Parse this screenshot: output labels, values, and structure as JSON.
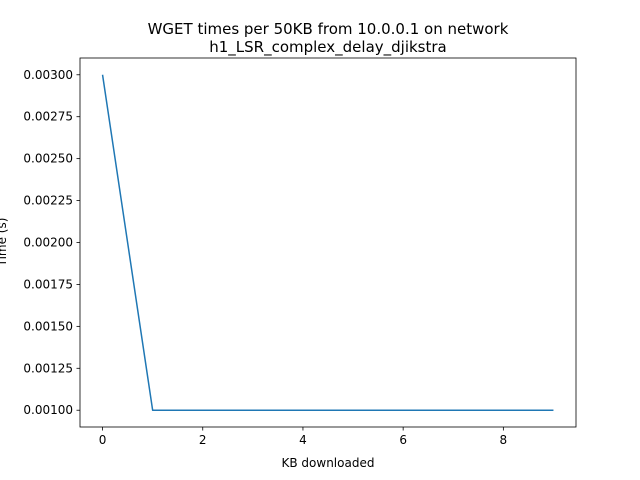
{
  "chart_data": {
    "type": "line",
    "title": "WGET times per 50KB from 10.0.0.1 on network",
    "subtitle": "h1_LSR_complex_delay_djikstra",
    "xlabel": "KB downloaded",
    "ylabel": "Time (s)",
    "xlim": [
      -0.45,
      9.45
    ],
    "ylim": [
      0.0009,
      0.0031
    ],
    "xticks": [
      0,
      2,
      4,
      6,
      8
    ],
    "yticks": [
      0.001,
      0.00125,
      0.0015,
      0.00175,
      0.002,
      0.00225,
      0.0025,
      0.00275,
      0.003
    ],
    "ytick_labels": [
      "0.00100",
      "0.00125",
      "0.00150",
      "0.00175",
      "0.00200",
      "0.00225",
      "0.00250",
      "0.00275",
      "0.00300"
    ],
    "grid": false,
    "series": [
      {
        "color": "#1f77b4",
        "x": [
          0,
          1,
          2,
          3,
          4,
          5,
          6,
          7,
          8,
          9
        ],
        "y": [
          0.003,
          0.001,
          0.001,
          0.001,
          0.001,
          0.001,
          0.001,
          0.001,
          0.001,
          0.001
        ]
      }
    ]
  }
}
